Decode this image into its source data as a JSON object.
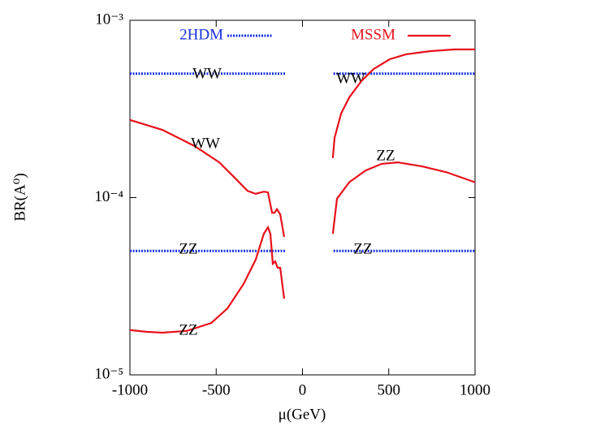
{
  "chart_data": {
    "type": "line",
    "log_y": true,
    "x_label": "μ(GeV)",
    "y_label": "BR(A⁰)",
    "xlim": [
      -1000,
      1000
    ],
    "xticks": [
      -1000,
      -500,
      0,
      500,
      1000
    ],
    "ylim": [
      1e-05,
      0.001
    ],
    "yticks": [
      {
        "value": 1e-05,
        "label": "10⁻⁵"
      },
      {
        "value": 0.0001,
        "label": "10⁻⁴"
      },
      {
        "value": 0.001,
        "label": "10⁻³"
      }
    ],
    "series": [
      {
        "name": "2HDM",
        "color": "#1530e0",
        "dash": "dotted",
        "curves": [
          {
            "label": "WW",
            "x": [
              -1000,
              -100
            ],
            "values": [
              0.0005,
              0.0005
            ]
          },
          {
            "label": "WW",
            "x": [
              180,
              1000
            ],
            "values": [
              0.0005,
              0.0005
            ]
          },
          {
            "label": "ZZ",
            "x": [
              -1000,
              -100
            ],
            "values": [
              5e-05,
              5e-05
            ]
          },
          {
            "label": "ZZ",
            "x": [
              180,
              1000
            ],
            "values": [
              5e-05,
              5e-05
            ]
          }
        ]
      },
      {
        "name": "MSSM",
        "color": "#e8101a",
        "dash": "solid",
        "curves": [
          {
            "label": "WW",
            "x": [
              -1000,
              -812,
              -624,
              -482,
              -388,
              -318,
              -271,
              -224,
              -200,
              -176,
              -162,
              -148,
              -129,
              -106
            ],
            "values": [
              0.000274,
              0.000241,
              0.000195,
              0.000158,
              0.000128,
              0.000109,
              0.000105,
              0.000108,
              0.000107,
              8.2e-05,
              8.2e-05,
              8.6e-05,
              8.05e-05,
              6e-05
            ]
          },
          {
            "label": "ZZ",
            "x": [
              -1000,
              -906,
              -812,
              -671,
              -529,
              -435,
              -341,
              -271,
              -224,
              -200,
              -186,
              -172,
              -158,
              -144,
              -129,
              -106
            ],
            "values": [
              1.79e-05,
              1.75e-05,
              1.73e-05,
              1.77e-05,
              1.96e-05,
              2.37e-05,
              3.26e-05,
              4.47e-05,
              6.25e-05,
              6.8e-05,
              6.25e-05,
              4.24e-05,
              4.37e-05,
              4.02e-05,
              4.02e-05,
              2.69e-05
            ]
          },
          {
            "x": [
              176,
              186,
              224,
              271,
              341,
              412,
              506,
              600,
              741,
              882,
              1000
            ],
            "values": [
              0.000167,
              0.000217,
              0.000298,
              0.000367,
              0.000454,
              0.000531,
              0.000603,
              0.000643,
              0.00067,
              0.000685,
              0.000685
            ]
          },
          {
            "label": "ZZ",
            "x": [
              176,
              200,
              271,
              365,
              459,
              553,
              694,
              835,
              1000
            ],
            "values": [
              6.25e-05,
              9.85e-05,
              0.000122,
              0.000142,
              0.000155,
              0.000158,
              0.00015,
              0.000139,
              0.000122
            ]
          }
        ]
      }
    ]
  }
}
